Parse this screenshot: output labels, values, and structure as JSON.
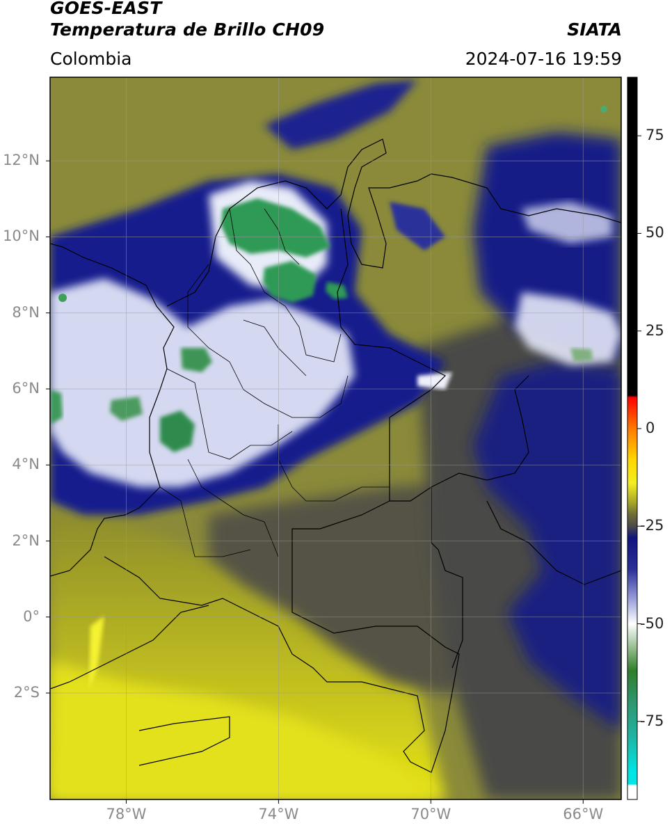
{
  "header": {
    "satellite": "GOES-EAST",
    "product": "Temperatura de Brillo CH09",
    "organization": "SIATA",
    "region": "Colombia",
    "datetime": "2024-07-16 19:59"
  },
  "map": {
    "projection": "lat-lon",
    "lon_range": [
      -80,
      -65
    ],
    "lat_range": [
      -4.8,
      14.2
    ],
    "latitude_ticks": [
      {
        "value": 12,
        "label": "12°N"
      },
      {
        "value": 10,
        "label": "10°N"
      },
      {
        "value": 8,
        "label": "8°N"
      },
      {
        "value": 6,
        "label": "6°N"
      },
      {
        "value": 4,
        "label": "4°N"
      },
      {
        "value": 2,
        "label": "2°N"
      },
      {
        "value": 0,
        "label": "0°"
      },
      {
        "value": -2,
        "label": "2°S"
      }
    ],
    "longitude_ticks": [
      {
        "value": -78,
        "label": "78°W"
      },
      {
        "value": -74,
        "label": "74°W"
      },
      {
        "value": -70,
        "label": "70°W"
      },
      {
        "value": -66,
        "label": "66°W"
      }
    ],
    "gridlines": true,
    "colors": {
      "warm_yellow": "#e3e01a",
      "olive": "#8e8d2c",
      "dark_olive": "#555244",
      "navy": "#141a8a",
      "white": "#f2f4fb",
      "green": "#2f9a55"
    }
  },
  "colorbar": {
    "range": [
      -95,
      90
    ],
    "ticks": [
      {
        "value": 75,
        "label": "75"
      },
      {
        "value": 50,
        "label": "50"
      },
      {
        "value": 25,
        "label": "25"
      },
      {
        "value": 0,
        "label": "0"
      },
      {
        "value": -25,
        "label": "-25"
      },
      {
        "value": -50,
        "label": "-50"
      },
      {
        "value": -75,
        "label": "-75"
      }
    ],
    "stops": [
      {
        "value": 90,
        "color": "#000000"
      },
      {
        "value": 8.5,
        "color": "#000000"
      },
      {
        "value": 8,
        "color": "#ff0000"
      },
      {
        "value": 0,
        "color": "#ff7a00"
      },
      {
        "value": -8,
        "color": "#ffd700"
      },
      {
        "value": -14,
        "color": "#f3ee22"
      },
      {
        "value": -19,
        "color": "#a6a528"
      },
      {
        "value": -22,
        "color": "#6e6c3a"
      },
      {
        "value": -25,
        "color": "#4b4a4a"
      },
      {
        "value": -28,
        "color": "#10137e"
      },
      {
        "value": -36,
        "color": "#2a3098"
      },
      {
        "value": -44,
        "color": "#9ea4dc"
      },
      {
        "value": -50,
        "color": "#ffffff"
      },
      {
        "value": -55,
        "color": "#a9caa5"
      },
      {
        "value": -62,
        "color": "#2f7e2a"
      },
      {
        "value": -70,
        "color": "#2e9670"
      },
      {
        "value": -79,
        "color": "#1fb5a2"
      },
      {
        "value": -88,
        "color": "#00e5e5"
      },
      {
        "value": -91,
        "color": "#00e5e5"
      },
      {
        "value": -91.5,
        "color": "#ffffff"
      },
      {
        "value": -95,
        "color": "#ffffff"
      }
    ]
  }
}
